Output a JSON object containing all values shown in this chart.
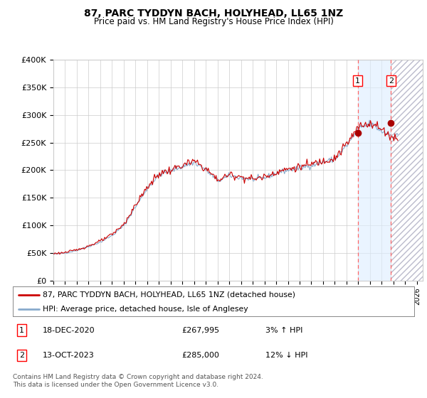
{
  "title": "87, PARC TYDDYN BACH, HOLYHEAD, LL65 1NZ",
  "subtitle": "Price paid vs. HM Land Registry's House Price Index (HPI)",
  "ylim": [
    0,
    400000
  ],
  "xlim_start": 1995.0,
  "xlim_end": 2026.5,
  "sale1_date": 2020.96,
  "sale1_price": 267995,
  "sale1_label": "1",
  "sale1_text": "18-DEC-2020",
  "sale1_pct": "3% ↑ HPI",
  "sale2_date": 2023.79,
  "sale2_price": 285000,
  "sale2_label": "2",
  "sale2_text": "13-OCT-2023",
  "sale2_pct": "12% ↓ HPI",
  "legend_line1": "87, PARC TYDDYN BACH, HOLYHEAD, LL65 1NZ (detached house)",
  "legend_line2": "HPI: Average price, detached house, Isle of Anglesey",
  "footer": "Contains HM Land Registry data © Crown copyright and database right 2024.\nThis data is licensed under the Open Government Licence v3.0.",
  "line_color_red": "#cc0000",
  "line_color_blue": "#88aacc",
  "background_color": "#ffffff",
  "sale_marker_color": "#aa0000",
  "hatch_color": "#aaaacc"
}
